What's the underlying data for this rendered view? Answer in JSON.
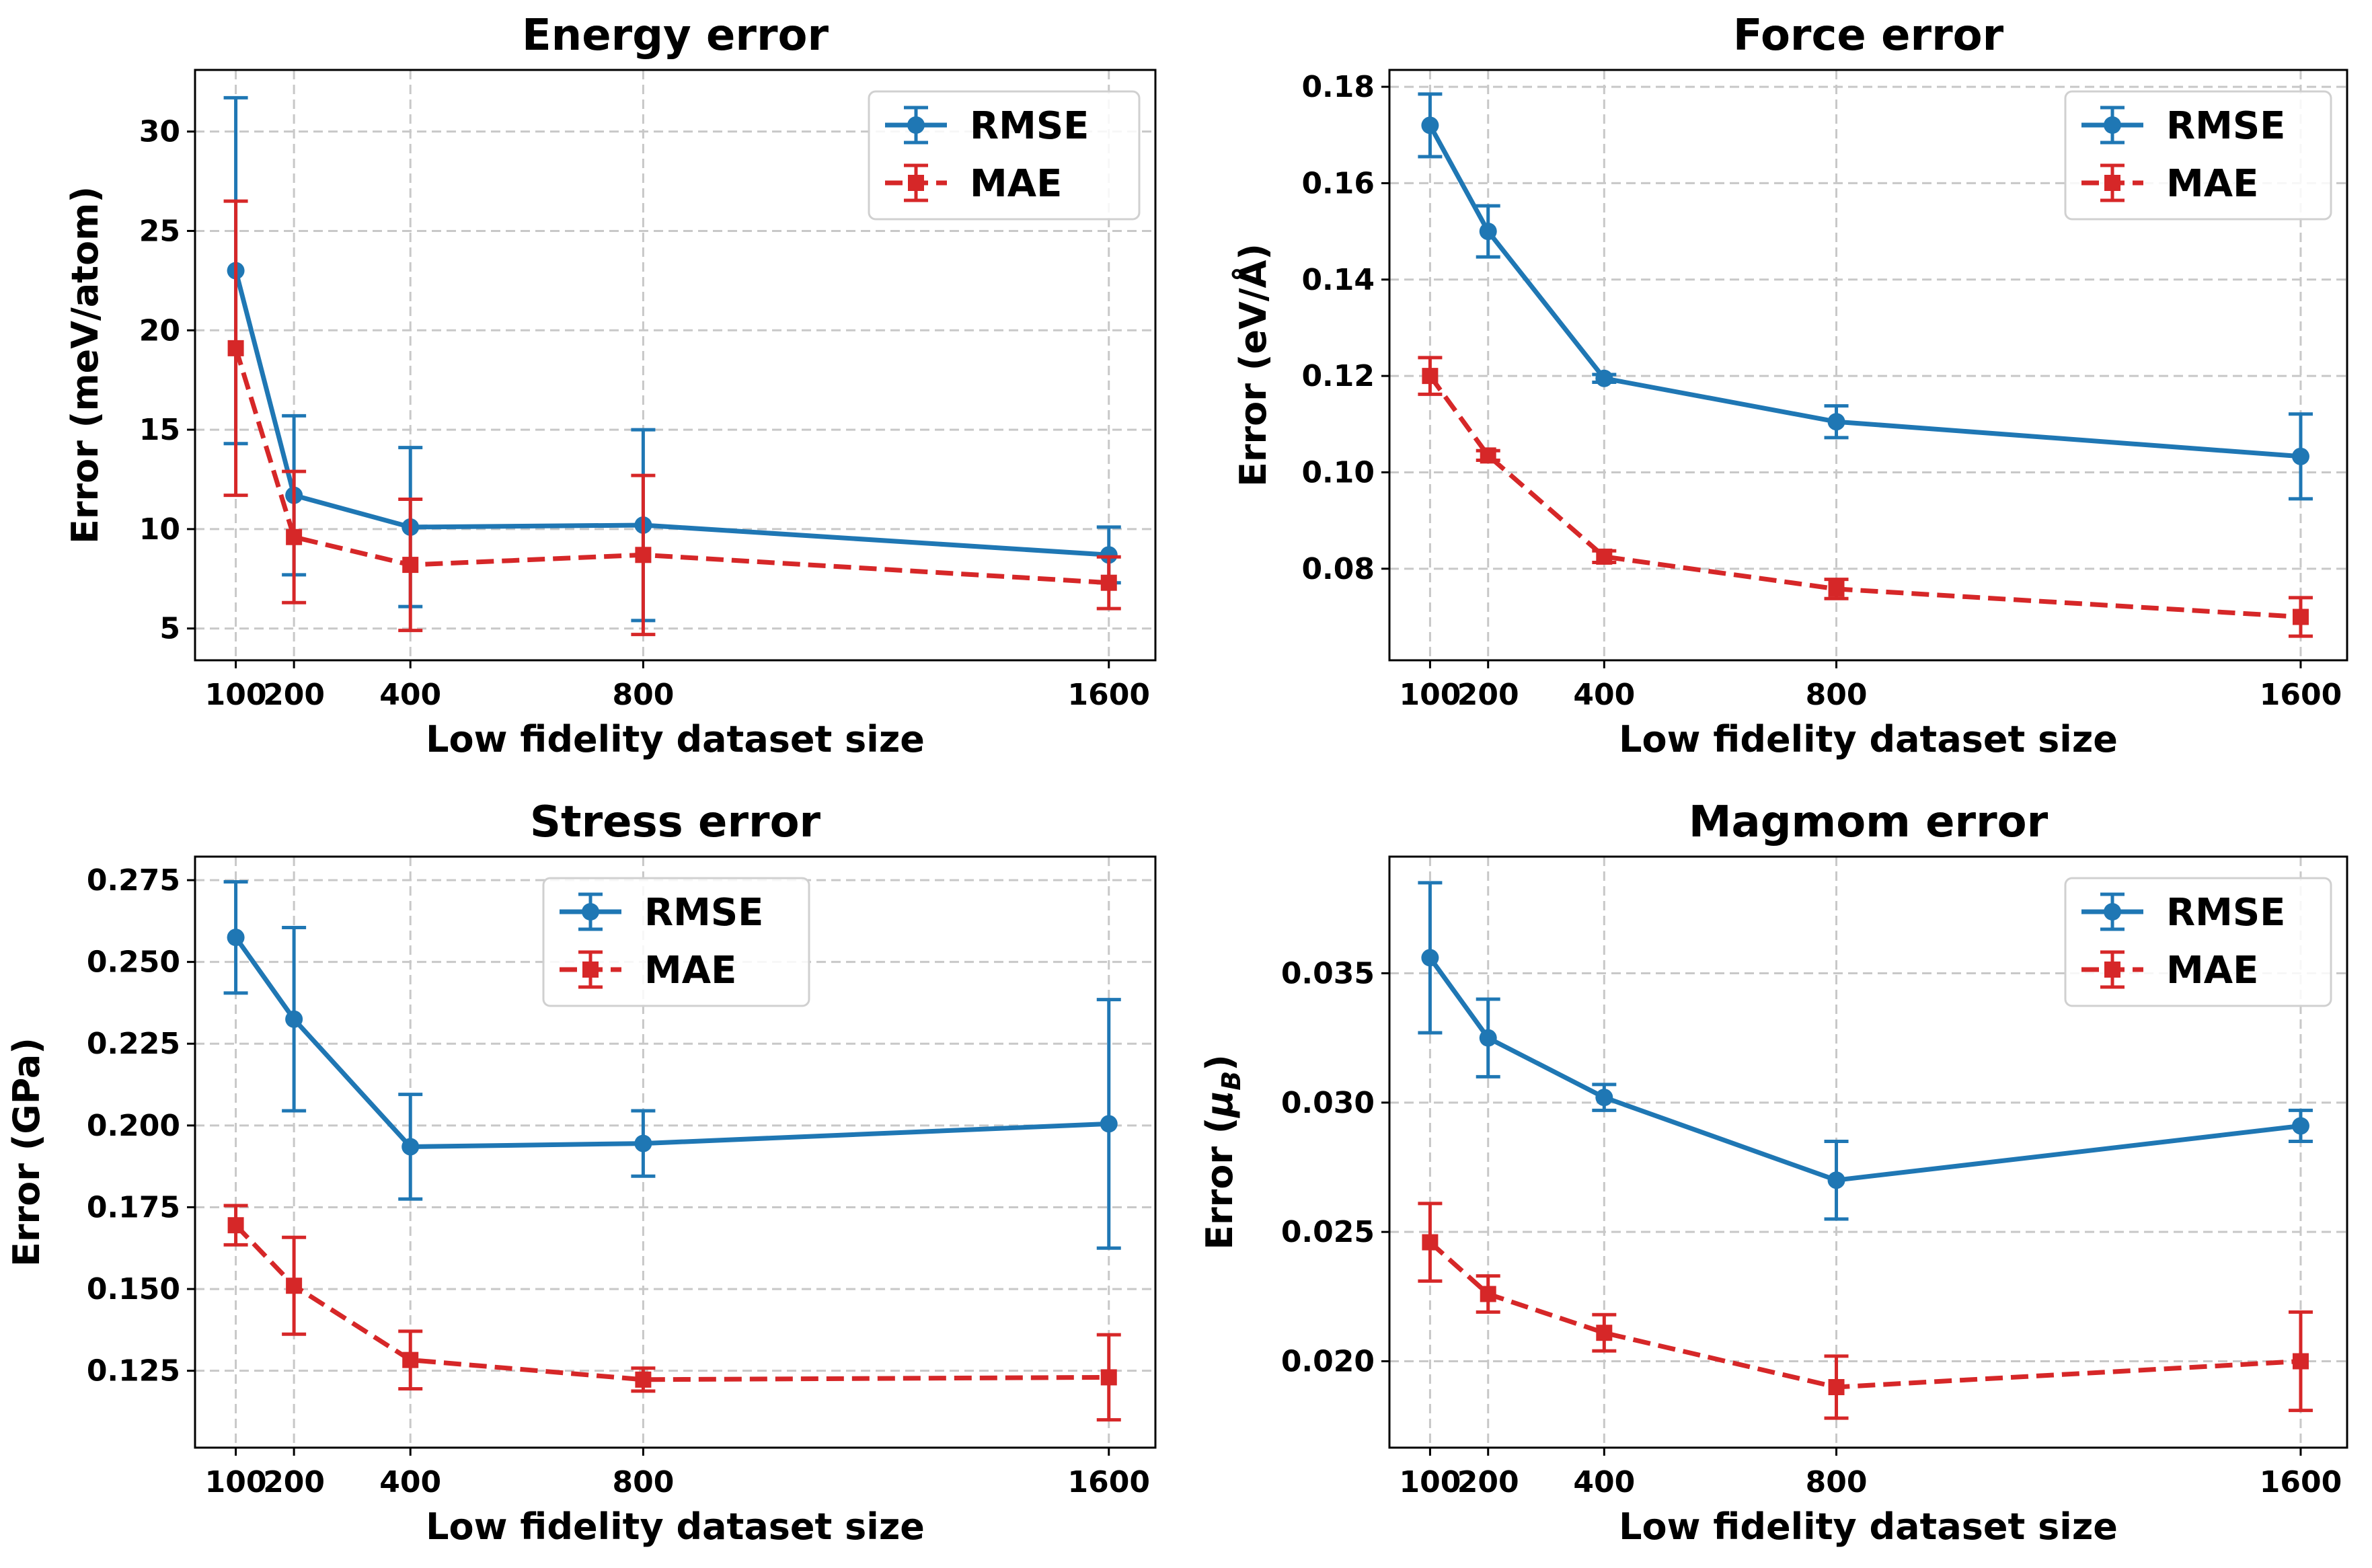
{
  "colors": {
    "rmse": "#1f77b4",
    "mae": "#d62728"
  },
  "legend_labels": [
    "RMSE",
    "MAE"
  ],
  "chart_data": [
    {
      "type": "line",
      "title": "Energy error",
      "xlabel": "Low fidelity dataset size",
      "ylabel": "Error (meV/atom)",
      "x": [
        100,
        200,
        400,
        800,
        1600
      ],
      "xticks": [
        100,
        200,
        400,
        800,
        1600
      ],
      "xtick_labels": [
        "100",
        "200",
        "400",
        "800",
        "1600"
      ],
      "xlim": [
        30,
        1680
      ],
      "ylim": [
        3.4,
        33.1
      ],
      "yticks": [
        5,
        10,
        15,
        20,
        25,
        30
      ],
      "ytick_labels": [
        "5",
        "10",
        "15",
        "20",
        "25",
        "30"
      ],
      "legend_loc": "upper right",
      "series": [
        {
          "name": "RMSE",
          "style": "solid",
          "marker": "circle",
          "values": [
            23.0,
            11.7,
            10.1,
            10.2,
            8.7
          ],
          "err": [
            8.7,
            4.0,
            4.0,
            4.8,
            1.4
          ]
        },
        {
          "name": "MAE",
          "style": "dashed",
          "marker": "square",
          "values": [
            19.1,
            9.6,
            8.2,
            8.7,
            7.3
          ],
          "err": [
            7.4,
            3.3,
            3.3,
            4.0,
            1.3
          ]
        }
      ]
    },
    {
      "type": "line",
      "title": "Force error",
      "xlabel": "Low fidelity dataset size",
      "ylabel": "Error (eV/Å)",
      "x": [
        100,
        200,
        400,
        800,
        1600
      ],
      "xticks": [
        100,
        200,
        400,
        800,
        1600
      ],
      "xtick_labels": [
        "100",
        "200",
        "400",
        "800",
        "1600"
      ],
      "xlim": [
        30,
        1680
      ],
      "ylim": [
        0.061,
        0.1835
      ],
      "yticks": [
        0.08,
        0.1,
        0.12,
        0.14,
        0.16,
        0.18
      ],
      "ytick_labels": [
        "0.08",
        "0.10",
        "0.12",
        "0.14",
        "0.16",
        "0.18"
      ],
      "legend_loc": "upper right",
      "series": [
        {
          "name": "RMSE",
          "style": "solid",
          "marker": "circle",
          "values": [
            0.172,
            0.15,
            0.1195,
            0.1105,
            0.1033
          ],
          "err": [
            0.0065,
            0.0053,
            0.0008,
            0.0033,
            0.0088
          ]
        },
        {
          "name": "MAE",
          "style": "dashed",
          "marker": "square",
          "values": [
            0.12,
            0.1035,
            0.0825,
            0.0758,
            0.07
          ],
          "err": [
            0.0038,
            0.001,
            0.0012,
            0.002,
            0.004
          ]
        }
      ]
    },
    {
      "type": "line",
      "title": "Stress error",
      "xlabel": "Low fidelity dataset size",
      "ylabel": "Error (GPa)",
      "x": [
        100,
        200,
        400,
        800,
        1600
      ],
      "xticks": [
        100,
        200,
        400,
        800,
        1600
      ],
      "xtick_labels": [
        "100",
        "200",
        "400",
        "800",
        "1600"
      ],
      "xlim": [
        30,
        1680
      ],
      "ylim": [
        0.1015,
        0.2822
      ],
      "yticks": [
        0.125,
        0.15,
        0.175,
        0.2,
        0.225,
        0.25,
        0.275
      ],
      "ytick_labels": [
        "0.125",
        "0.150",
        "0.175",
        "0.200",
        "0.225",
        "0.250",
        "0.275"
      ],
      "legend_loc": "upper center",
      "series": [
        {
          "name": "RMSE",
          "style": "solid",
          "marker": "circle",
          "values": [
            0.2575,
            0.2325,
            0.1935,
            0.1945,
            0.2005
          ],
          "err": [
            0.017,
            0.028,
            0.016,
            0.01,
            0.038
          ]
        },
        {
          "name": "MAE",
          "style": "dashed",
          "marker": "square",
          "values": [
            0.1695,
            0.151,
            0.1283,
            0.1223,
            0.123
          ],
          "err": [
            0.006,
            0.0148,
            0.0088,
            0.0035,
            0.013
          ]
        }
      ]
    },
    {
      "type": "line",
      "title": "Magmom error",
      "xlabel": "Low fidelity dataset size",
      "ylabel": "Error (μ_B)",
      "x": [
        100,
        200,
        400,
        800,
        1600
      ],
      "xticks": [
        100,
        200,
        400,
        800,
        1600
      ],
      "xtick_labels": [
        "100",
        "200",
        "400",
        "800",
        "1600"
      ],
      "xlim": [
        30,
        1680
      ],
      "ylim": [
        0.01666,
        0.03951
      ],
      "yticks": [
        0.02,
        0.025,
        0.03,
        0.035
      ],
      "ytick_labels": [
        "0.020",
        "0.025",
        "0.030",
        "0.035"
      ],
      "legend_loc": "upper right",
      "series": [
        {
          "name": "RMSE",
          "style": "solid",
          "marker": "circle",
          "values": [
            0.0356,
            0.0325,
            0.0302,
            0.027,
            0.0291
          ],
          "err": [
            0.0029,
            0.0015,
            0.0005,
            0.0015,
            0.0006
          ]
        },
        {
          "name": "MAE",
          "style": "dashed",
          "marker": "square",
          "values": [
            0.0246,
            0.0226,
            0.0211,
            0.019,
            0.02
          ],
          "err": [
            0.0015,
            0.0007,
            0.0007,
            0.0012,
            0.0019
          ]
        }
      ]
    }
  ]
}
